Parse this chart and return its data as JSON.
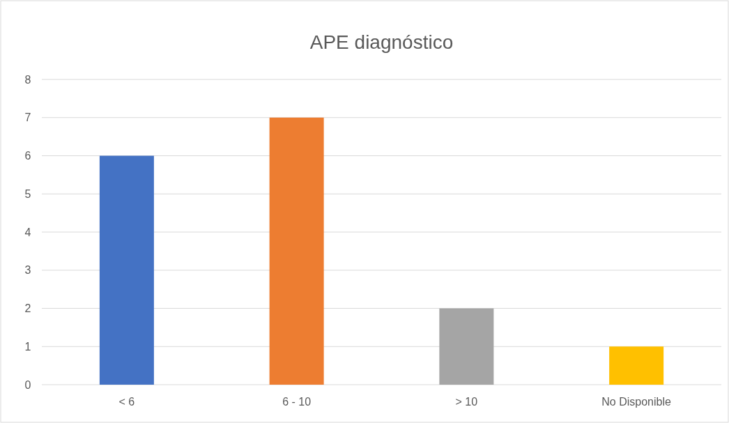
{
  "chart_data": {
    "type": "bar",
    "title": "APE diagnóstico",
    "categories": [
      "< 6",
      "6 - 10",
      "> 10",
      "No Disponible"
    ],
    "values": [
      6,
      7,
      2,
      1
    ],
    "colors": [
      "#4472c4",
      "#ed7d31",
      "#a5a5a5",
      "#ffc000"
    ],
    "ylim": [
      0,
      8
    ],
    "yticks": [
      0,
      1,
      2,
      3,
      4,
      5,
      6,
      7,
      8
    ],
    "grid": "y"
  }
}
